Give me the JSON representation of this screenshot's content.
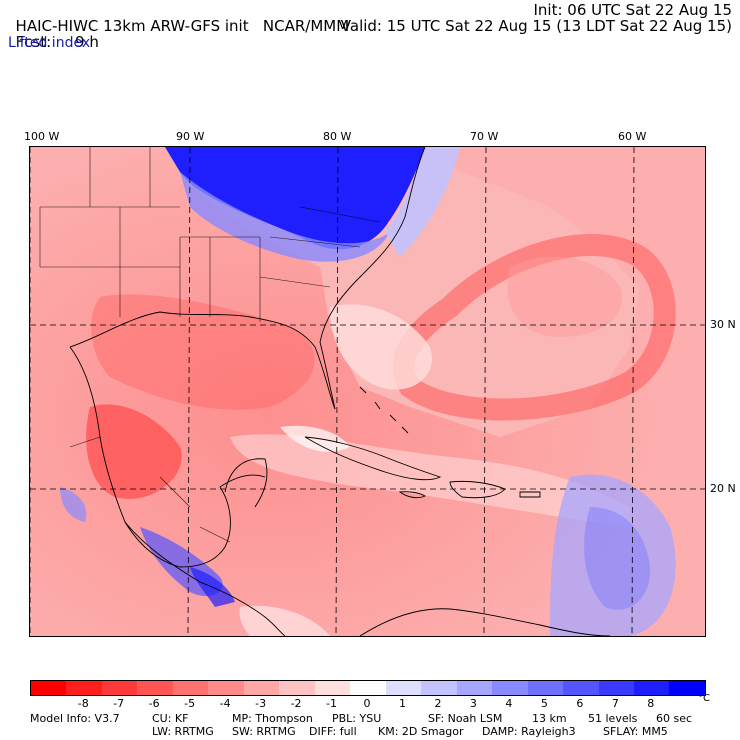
{
  "header": {
    "model_title": "HAIC-HIWC 13km ARW-GFS init",
    "org": "NCAR/MMM",
    "init": "Init: 06 UTC Sat 22 Aug 15",
    "fcst_label": "Fcst:",
    "fcst_value": "9 h",
    "valid": "Valid: 15 UTC Sat 22 Aug 15 (13 LDT Sat 22 Aug 15)",
    "field": "Lifted index"
  },
  "map": {
    "lon_labels": [
      "100 W",
      "90 W",
      "80 W",
      "70 W",
      "60 W"
    ],
    "lat_labels": [
      "30 N",
      "20 N"
    ],
    "field_sign_summary": "mostly negative (unstable) over land/Gulf; positive over eastern US and SE Atlantic"
  },
  "colorbar": {
    "colors": [
      "#ff0000",
      "#ff1e1e",
      "#ff3a3a",
      "#ff5555",
      "#ff7070",
      "#ff8a8a",
      "#ffa6a6",
      "#ffc2c2",
      "#ffdede",
      "#ffffff",
      "#dedeff",
      "#c2c2ff",
      "#a6a6ff",
      "#8a8aff",
      "#7070ff",
      "#5555ff",
      "#3a3aff",
      "#1e1eff",
      "#0000ff"
    ],
    "ticks": [
      "-8",
      "-7",
      "-6",
      "-5",
      "-4",
      "-3",
      "-2",
      "-1",
      "0",
      "1",
      "2",
      "3",
      "4",
      "5",
      "6",
      "7",
      "8"
    ],
    "unit": "°C"
  },
  "footer": {
    "line1": {
      "model_info": "Model Info: V3.7",
      "cu": "CU: KF",
      "mp": "MP: Thompson",
      "pbl": "PBL: YSU",
      "sf": "SF: Noah LSM",
      "res": "13 km",
      "levels": "51 levels",
      "dt": "60 sec"
    },
    "line2": {
      "lw": "LW: RRTMG",
      "sw": "SW: RRTMG",
      "diff": "DIFF: full",
      "km": "KM: 2D Smagor",
      "damp": "DAMP: Rayleigh3",
      "sflay": "SFLAY: MM5"
    }
  }
}
